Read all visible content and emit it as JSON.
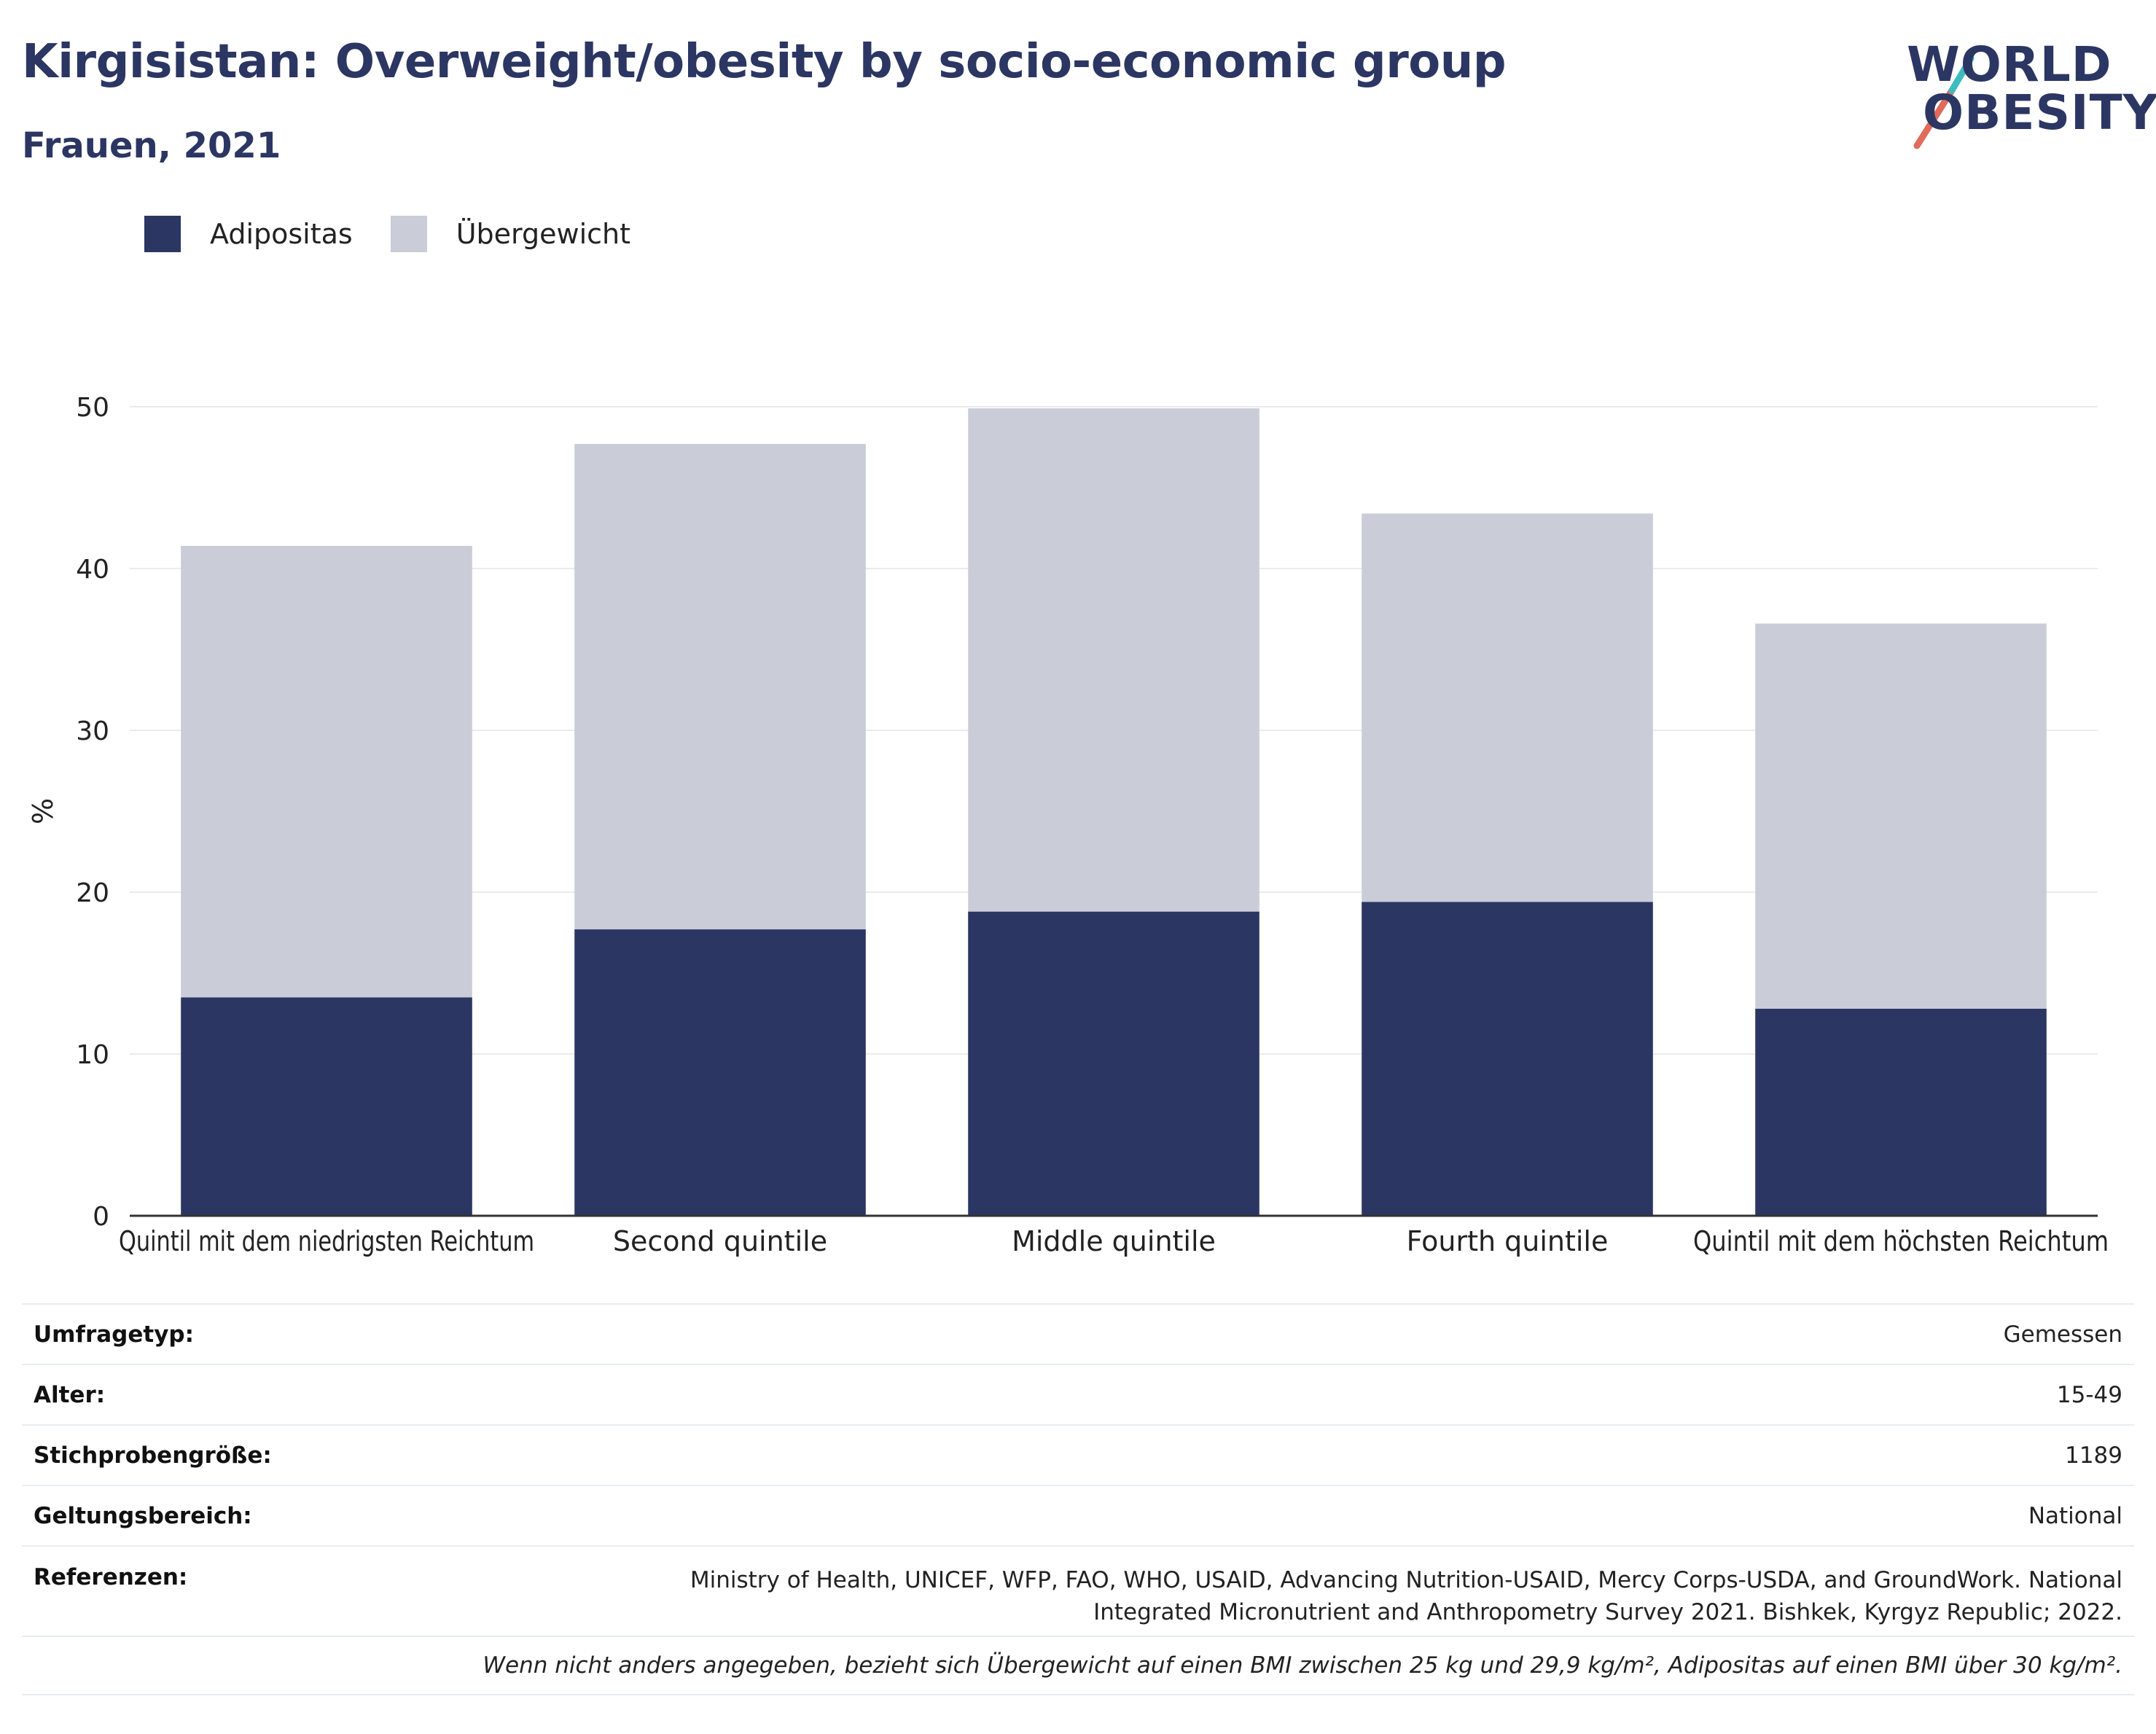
{
  "header": {
    "title": "Kirgisistan: Overweight/obesity by socio-economic group",
    "subtitle": "Frauen, 2021",
    "logo_line1": "WORLD",
    "logo_line2": "OBESITY"
  },
  "colors": {
    "adipositas": "#2b3663",
    "uebergewicht": "#caccd8",
    "title": "#2c3663",
    "logo_slash_red": "#e06b5d",
    "logo_slash_teal": "#3dbcc0"
  },
  "legend": [
    {
      "label": "Adipositas",
      "color": "#2b3663"
    },
    {
      "label": "Übergewicht",
      "color": "#caccd8"
    }
  ],
  "chart_data": {
    "type": "bar",
    "stacked": true,
    "categories": [
      "Quintil mit dem niedrigsten Reichtum",
      "Second quintile",
      "Middle quintile",
      "Fourth quintile",
      "Quintil mit dem höchsten Reichtum"
    ],
    "series": [
      {
        "name": "Adipositas",
        "values": [
          13.5,
          17.7,
          18.8,
          19.4,
          12.8
        ]
      },
      {
        "name": "Übergewicht",
        "values": [
          27.9,
          30.0,
          31.1,
          24.0,
          23.8
        ]
      }
    ],
    "ylabel": "%",
    "ylim": [
      0,
      50
    ],
    "yticks": [
      0,
      10,
      20,
      30,
      40,
      50
    ],
    "grid": true,
    "legend_position": "top-left"
  },
  "meta": {
    "rows": [
      {
        "label": "Umfragetyp:",
        "value": "Gemessen"
      },
      {
        "label": "Alter:",
        "value": "15-49"
      },
      {
        "label": "Stichprobengröße:",
        "value": "1189"
      },
      {
        "label": "Geltungsbereich:",
        "value": "National"
      }
    ],
    "references_label": "Referenzen:",
    "references_value": "Ministry of Health, UNICEF, WFP, FAO, WHO, USAID, Advancing Nutrition-USAID, Mercy Corps-USDA, and GroundWork. National Integrated Micronutrient and Anthropometry Survey 2021. Bishkek, Kyrgyz Republic; 2022.",
    "note": "Wenn nicht anders angegeben, bezieht sich Übergewicht auf einen BMI zwischen 25 kg und 29,9 kg/m², Adipositas auf einen BMI über 30 kg/m²."
  }
}
